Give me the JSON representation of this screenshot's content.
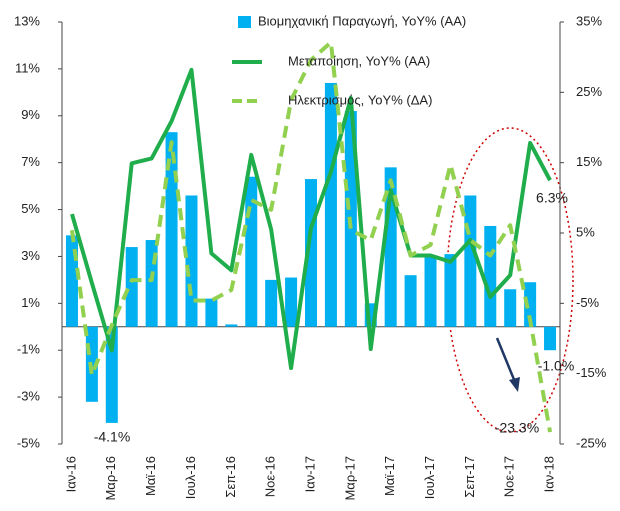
{
  "chart_data": {
    "type": "bar+line",
    "categories": [
      "Ιαν-16",
      null,
      "Μαρ-16",
      null,
      "Μαϊ-16",
      null,
      "Ιουλ-16",
      null,
      "Σεπ-16",
      null,
      "Νοε-16",
      null,
      "Ιαν-17",
      null,
      "Μαρ-17",
      null,
      "Μαϊ-17",
      null,
      "Ιουλ-17",
      null,
      "Σεπ-17",
      null,
      "Νοε-17",
      null,
      "Ιαν-18"
    ],
    "series": [
      {
        "name": "Βιομηχανική Παραγωγή, YoY% (AA)",
        "type": "bar",
        "color": "#00b0f0",
        "values": [
          3.9,
          -3.2,
          -4.1,
          3.4,
          3.7,
          8.3,
          5.6,
          1.2,
          0.1,
          6.4,
          2.0,
          2.1,
          6.3,
          10.4,
          9.2,
          1.0,
          6.8,
          2.2,
          3.0,
          3.1,
          5.6,
          4.3,
          1.6,
          1.9,
          -1.0
        ]
      },
      {
        "name": "Μεταποίηση, YoY% (AA)",
        "type": "line",
        "axis": "y2",
        "color": "#1fae4b",
        "values": [
          7.7,
          -2.1,
          -11.7,
          14.9,
          15.6,
          20.9,
          28.2,
          2.1,
          -0.3,
          16.1,
          5.5,
          -14.2,
          5.7,
          13.7,
          24.2,
          -11.5,
          11.1,
          1.8,
          1.8,
          0.9,
          4.0,
          -4.1,
          -1.0,
          17.8,
          12.5
        ]
      },
      {
        "name": "Ηλεκτρισμός, YoY% (ΔΑ)",
        "type": "line",
        "axis": "y2",
        "dashed": true,
        "color": "#92d050",
        "values": [
          5.4,
          -15.2,
          -8.1,
          -1.7,
          -1.7,
          17.9,
          -4.6,
          -4.6,
          -3.1,
          9.7,
          8.3,
          23.9,
          29.6,
          32.1,
          5.4,
          4.0,
          12.5,
          1.8,
          3.3,
          14.7,
          4.0,
          1.8,
          6.1,
          -7.4,
          -23.3
        ]
      }
    ],
    "ylim": [
      -5,
      13
    ],
    "yticks": [
      {
        "value": -5,
        "label": "-5%"
      },
      {
        "value": -3,
        "label": "-3%"
      },
      {
        "value": -1,
        "label": "-1%"
      },
      {
        "value": 1,
        "label": "1%"
      },
      {
        "value": 3,
        "label": "3%"
      },
      {
        "value": 5,
        "label": "5%"
      },
      {
        "value": 7,
        "label": "7%"
      },
      {
        "value": 9,
        "label": "9%"
      },
      {
        "value": 11,
        "label": "11%"
      },
      {
        "value": 13,
        "label": "13%"
      }
    ],
    "y2lim": [
      -25,
      35
    ],
    "y2ticks": [
      {
        "value": -25,
        "label": "-25%"
      },
      {
        "value": -15,
        "label": "-15%"
      },
      {
        "value": -5,
        "label": "-5%"
      },
      {
        "value": 5,
        "label": "5%"
      },
      {
        "value": 15,
        "label": "15%"
      },
      {
        "value": 25,
        "label": "25%"
      },
      {
        "value": 35,
        "label": "35%"
      }
    ],
    "annotations": [
      "-4.1%",
      "6.3%",
      "-1.0%",
      "-23.3%"
    ]
  }
}
